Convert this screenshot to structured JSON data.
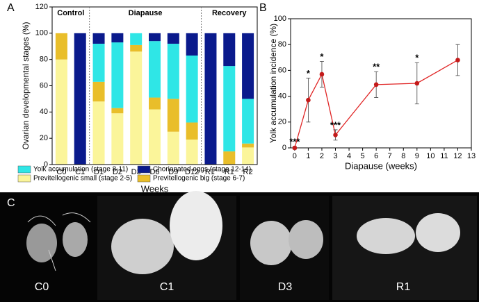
{
  "panel_labels": [
    "A",
    "B",
    "C"
  ],
  "photo_labels": [
    "C0",
    "C1",
    "D3",
    "R1"
  ],
  "chart_data": [
    {
      "type": "stacked-bar",
      "ylabel": "Ovarian developmental stages (%)",
      "xlabel": "Weeks",
      "sections": [
        "Control",
        "Diapause",
        "Recovery"
      ],
      "categories": [
        "C0",
        "C1",
        "D1",
        "D2",
        "D3",
        "D6",
        "D9",
        "D12",
        "R1'",
        "R1",
        "R2"
      ],
      "series": [
        {
          "name": "Previtellogenic small (stage 2-5)",
          "color": "#fbf59a",
          "values": [
            80,
            0,
            48,
            39,
            86,
            42,
            25,
            19,
            0,
            0,
            13
          ]
        },
        {
          "name": "Previtellogenic big (stage 6-7)",
          "color": "#e9be2a",
          "values": [
            20,
            0,
            15,
            4,
            5,
            9,
            25,
            13,
            0,
            10,
            3
          ]
        },
        {
          "name": "Yolk accumulation (stage 8-11)",
          "color": "#2fe6e6",
          "values": [
            0,
            0,
            29,
            50,
            9,
            43,
            42,
            51,
            0,
            65,
            34
          ]
        },
        {
          "name": "Chorionated eggs (stage 12-14)",
          "color": "#0a1a8c",
          "values": [
            0,
            100,
            8,
            7,
            0,
            6,
            8,
            17,
            100,
            25,
            50
          ]
        }
      ],
      "ylim": [
        0,
        120
      ],
      "yticks": [
        0,
        20,
        40,
        60,
        80,
        100,
        120
      ]
    },
    {
      "type": "line",
      "ylabel": "Yolk accumulation incidence (%)",
      "xlabel": "Diapause (weeks)",
      "x": [
        0,
        1,
        2,
        3,
        6,
        9,
        12
      ],
      "series": [
        {
          "color": "#e02424",
          "values": [
            0,
            37,
            57,
            10,
            49,
            50,
            68
          ],
          "errors": [
            1,
            17,
            10,
            4,
            10,
            16,
            12
          ]
        }
      ],
      "point_labels": [
        "***",
        "*",
        "*",
        "***",
        "**",
        "*",
        null
      ],
      "xlim": [
        -0.3,
        13
      ],
      "xticks": [
        0,
        1,
        2,
        3,
        4,
        5,
        6,
        7,
        8,
        9,
        10,
        11,
        12,
        13
      ],
      "ylim": [
        0,
        100
      ],
      "yticks": [
        0,
        20,
        40,
        60,
        80,
        100
      ]
    }
  ]
}
